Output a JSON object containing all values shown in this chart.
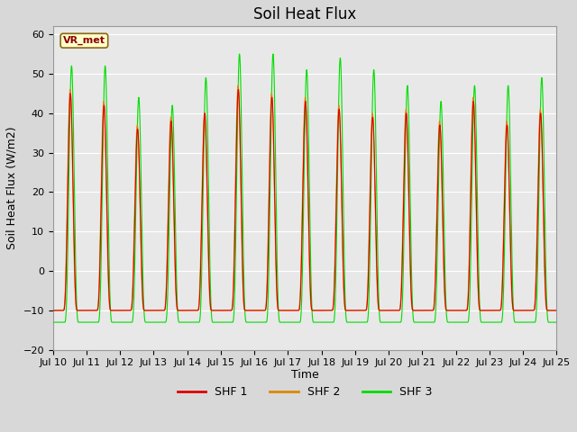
{
  "title": "Soil Heat Flux",
  "ylabel": "Soil Heat Flux (W/m2)",
  "xlabel": "Time",
  "ylim": [
    -20,
    62
  ],
  "xlim": [
    0,
    360
  ],
  "yticks": [
    -20,
    -10,
    0,
    10,
    20,
    30,
    40,
    50,
    60
  ],
  "xtick_labels": [
    "Jul 10",
    "Jul 11",
    "Jul 12",
    "Jul 13",
    "Jul 14",
    "Jul 15",
    "Jul 16",
    "Jul 17",
    "Jul 18",
    "Jul 19",
    "Jul 20",
    "Jul 21",
    "Jul 22",
    "Jul 23",
    "Jul 24",
    "Jul 25"
  ],
  "xtick_positions": [
    0,
    24,
    48,
    72,
    96,
    120,
    144,
    168,
    192,
    216,
    240,
    264,
    288,
    312,
    336,
    360
  ],
  "legend_labels": [
    "SHF 1",
    "SHF 2",
    "SHF 3"
  ],
  "line_colors": [
    "#dd0000",
    "#dd8800",
    "#00dd00"
  ],
  "annotation_text": "VR_met",
  "bg_color": "#e8e8e8",
  "grid_color": "#ffffff",
  "title_fontsize": 12,
  "label_fontsize": 9,
  "tick_fontsize": 8,
  "day_peaks_shf1": [
    45,
    42,
    36,
    38,
    40,
    46,
    44,
    43,
    41,
    39,
    40,
    37,
    43,
    37,
    40
  ],
  "day_peaks_shf2": [
    46,
    43,
    37,
    39,
    40,
    47,
    45,
    44,
    42,
    40,
    41,
    38,
    44,
    38,
    41
  ],
  "day_peaks_shf3": [
    52,
    52,
    44,
    42,
    49,
    55,
    55,
    51,
    54,
    51,
    47,
    43,
    47,
    47,
    49
  ]
}
